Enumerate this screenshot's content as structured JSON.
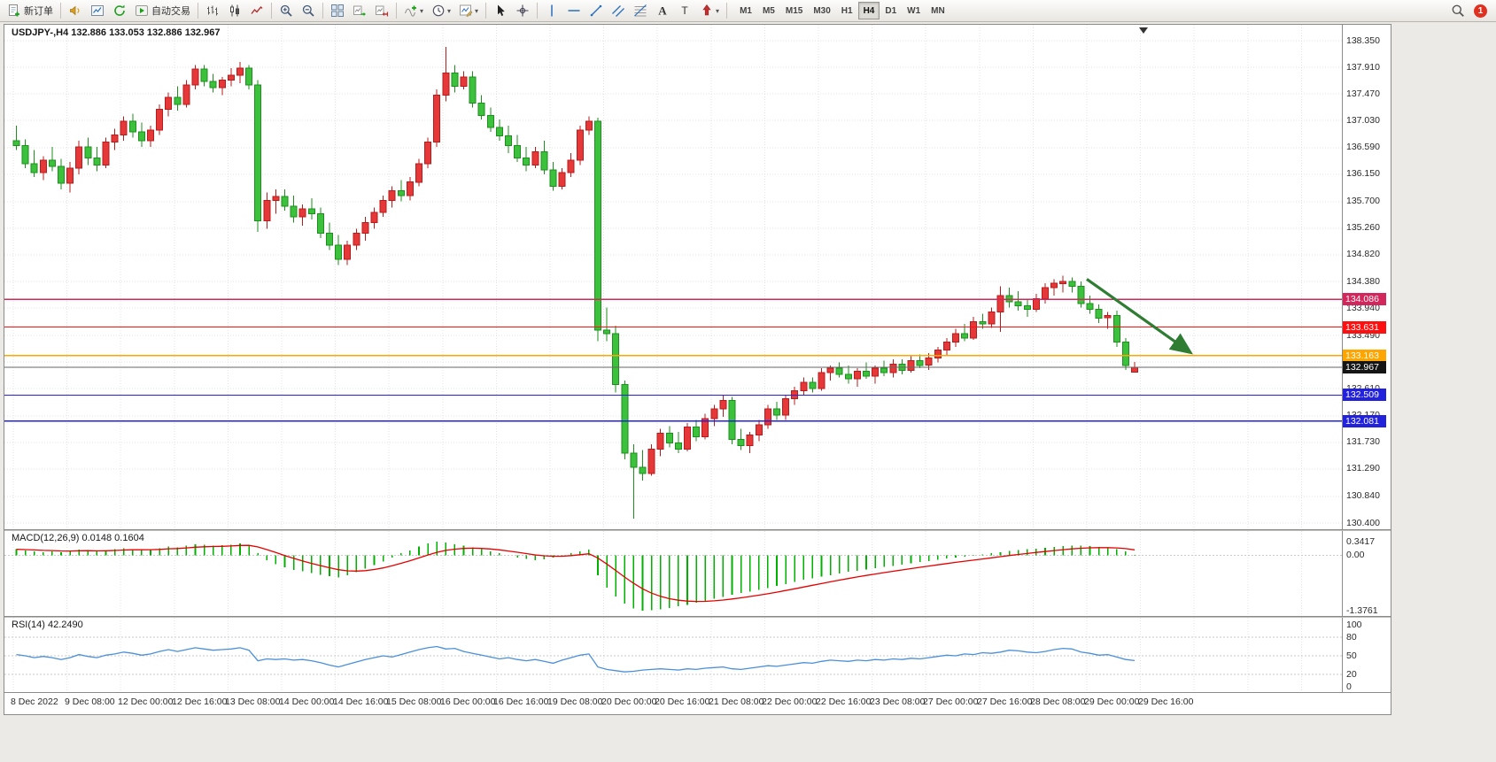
{
  "toolbar": {
    "items": [
      {
        "icon": "new-order-icon",
        "label": "新订单",
        "name": "new-order-button"
      },
      {
        "sep": true
      },
      {
        "icon": "horn-icon",
        "name": "alerts-button"
      },
      {
        "icon": "market-watch-icon",
        "name": "market-watch-button"
      },
      {
        "icon": "refresh-icon",
        "name": "refresh-button"
      },
      {
        "icon": "autotrading-icon",
        "label": "自动交易",
        "name": "autotrading-button"
      },
      {
        "sep": true
      },
      {
        "icon": "bar-chart-icon",
        "name": "bar-chart-button"
      },
      {
        "icon": "candle-chart-icon",
        "name": "candle-chart-button"
      },
      {
        "icon": "line-chart-icon",
        "name": "line-chart-button"
      },
      {
        "sep": true
      },
      {
        "icon": "zoom-in-icon",
        "name": "zoom-in-button"
      },
      {
        "icon": "zoom-out-icon",
        "name": "zoom-out-button"
      },
      {
        "sep": true
      },
      {
        "icon": "tile-windows-icon",
        "name": "tile-windows-button"
      },
      {
        "icon": "auto-scroll-icon",
        "name": "auto-scroll-button"
      },
      {
        "icon": "chart-shift-icon",
        "name": "chart-shift-button"
      },
      {
        "sep": true
      },
      {
        "icon": "indicators-icon",
        "name": "indicators-button",
        "dropdown": true
      },
      {
        "icon": "period-icon",
        "name": "periods-button",
        "dropdown": true
      },
      {
        "icon": "templates-icon",
        "name": "templates-button",
        "dropdown": true
      },
      {
        "sep": true
      },
      {
        "icon": "cursor-icon",
        "name": "cursor-button"
      },
      {
        "icon": "crosshair-icon",
        "name": "crosshair-button"
      },
      {
        "sep": true
      },
      {
        "icon": "vline-icon",
        "name": "vertical-line-button"
      },
      {
        "icon": "hline-icon",
        "name": "horizontal-line-button"
      },
      {
        "icon": "trendline-icon",
        "name": "trendline-button"
      },
      {
        "icon": "channel-icon",
        "name": "channel-button"
      },
      {
        "icon": "fibo-icon",
        "name": "fibonacci-button"
      },
      {
        "icon": "text-icon",
        "name": "text-button"
      },
      {
        "icon": "label-icon",
        "name": "text-label-button"
      },
      {
        "icon": "arrows-icon",
        "name": "arrows-button",
        "dropdown": true
      },
      {
        "sep": true
      }
    ],
    "timeframes": [
      "M1",
      "M5",
      "M15",
      "M30",
      "H1",
      "H4",
      "D1",
      "W1",
      "MN"
    ],
    "active_timeframe": "H4",
    "notification_count": "1"
  },
  "indicators": {
    "macd_label": "MACD(12,26,9) 0.0148 0.1604",
    "rsi_label": "RSI(14) 42.2490"
  },
  "chart_data": {
    "type": "candlestick",
    "symbol": "USDJPY-",
    "period": "H4",
    "title_line": "USDJPY-,H4 132.886 133.053 132.886 132.967",
    "ohlc_display": {
      "open": "132.886",
      "high": "133.053",
      "low": "132.886",
      "close": "132.967"
    },
    "colors": {
      "up": "#e63838",
      "up_border": "#b71c1c",
      "down": "#3bc13b",
      "down_border": "#1d8f1d",
      "grid": "#e3e3e3"
    },
    "price_axis_ticks": [
      "138.350",
      "137.910",
      "137.470",
      "137.030",
      "136.590",
      "136.150",
      "135.700",
      "135.260",
      "134.820",
      "134.380",
      "133.940",
      "133.490",
      "133.050",
      "132.610",
      "132.170",
      "131.730",
      "131.290",
      "130.840",
      "130.400"
    ],
    "time_axis": {
      "candle_step": 6,
      "labels": [
        "8 Dec 2022",
        "9 Dec 08:00",
        "12 Dec 00:00",
        "12 Dec 16:00",
        "13 Dec 08:00",
        "14 Dec 00:00",
        "14 Dec 16:00",
        "15 Dec 08:00",
        "16 Dec 00:00",
        "16 Dec 16:00",
        "19 Dec 08:00",
        "20 Dec 00:00",
        "20 Dec 16:00",
        "21 Dec 08:00",
        "22 Dec 00:00",
        "22 Dec 16:00",
        "23 Dec 08:00",
        "27 Dec 00:00",
        "27 Dec 16:00",
        "28 Dec 08:00",
        "29 Dec 00:00",
        "29 Dec 16:00"
      ]
    },
    "candles": [
      [
        136.7,
        136.95,
        136.55,
        136.62
      ],
      [
        136.62,
        136.72,
        136.25,
        136.32
      ],
      [
        136.32,
        136.55,
        136.1,
        136.18
      ],
      [
        136.18,
        136.45,
        136.05,
        136.38
      ],
      [
        136.38,
        136.6,
        136.2,
        136.28
      ],
      [
        136.28,
        136.4,
        135.9,
        136.0
      ],
      [
        136.0,
        136.35,
        135.85,
        136.25
      ],
      [
        136.25,
        136.7,
        136.15,
        136.6
      ],
      [
        136.6,
        136.75,
        136.3,
        136.42
      ],
      [
        136.42,
        136.6,
        136.2,
        136.3
      ],
      [
        136.3,
        136.75,
        136.25,
        136.68
      ],
      [
        136.68,
        136.9,
        136.55,
        136.8
      ],
      [
        136.8,
        137.1,
        136.7,
        137.02
      ],
      [
        137.02,
        137.15,
        136.75,
        136.85
      ],
      [
        136.85,
        137.0,
        136.6,
        136.7
      ],
      [
        136.7,
        136.95,
        136.6,
        136.88
      ],
      [
        136.88,
        137.3,
        136.8,
        137.22
      ],
      [
        137.22,
        137.5,
        137.1,
        137.42
      ],
      [
        137.42,
        137.6,
        137.2,
        137.3
      ],
      [
        137.3,
        137.7,
        137.25,
        137.62
      ],
      [
        137.62,
        137.95,
        137.55,
        137.88
      ],
      [
        137.88,
        137.95,
        137.6,
        137.68
      ],
      [
        137.68,
        137.8,
        137.5,
        137.58
      ],
      [
        137.58,
        137.75,
        137.45,
        137.7
      ],
      [
        137.7,
        137.9,
        137.6,
        137.78
      ],
      [
        137.78,
        138.0,
        137.65,
        137.9
      ],
      [
        137.9,
        137.95,
        137.55,
        137.62
      ],
      [
        137.62,
        137.7,
        135.2,
        135.38
      ],
      [
        135.38,
        135.85,
        135.25,
        135.72
      ],
      [
        135.72,
        135.9,
        135.5,
        135.78
      ],
      [
        135.78,
        135.9,
        135.55,
        135.62
      ],
      [
        135.62,
        135.8,
        135.35,
        135.45
      ],
      [
        135.45,
        135.65,
        135.3,
        135.58
      ],
      [
        135.58,
        135.75,
        135.4,
        135.5
      ],
      [
        135.5,
        135.6,
        135.1,
        135.18
      ],
      [
        135.18,
        135.35,
        134.9,
        134.98
      ],
      [
        134.98,
        135.15,
        134.65,
        134.75
      ],
      [
        134.75,
        135.05,
        134.65,
        134.98
      ],
      [
        134.98,
        135.25,
        134.9,
        135.18
      ],
      [
        135.18,
        135.45,
        135.05,
        135.35
      ],
      [
        135.35,
        135.6,
        135.25,
        135.52
      ],
      [
        135.52,
        135.8,
        135.45,
        135.72
      ],
      [
        135.72,
        135.95,
        135.6,
        135.88
      ],
      [
        135.88,
        136.05,
        135.7,
        135.8
      ],
      [
        135.8,
        136.1,
        135.72,
        136.02
      ],
      [
        136.02,
        136.4,
        135.95,
        136.32
      ],
      [
        136.32,
        136.75,
        136.25,
        136.68
      ],
      [
        136.68,
        137.55,
        136.6,
        137.45
      ],
      [
        137.45,
        138.25,
        137.35,
        137.82
      ],
      [
        137.82,
        137.95,
        137.5,
        137.6
      ],
      [
        137.6,
        137.85,
        137.55,
        137.75
      ],
      [
        137.75,
        137.85,
        137.25,
        137.32
      ],
      [
        137.32,
        137.45,
        137.05,
        137.12
      ],
      [
        137.12,
        137.25,
        136.85,
        136.92
      ],
      [
        136.92,
        137.05,
        136.7,
        136.78
      ],
      [
        136.78,
        136.95,
        136.5,
        136.62
      ],
      [
        136.62,
        136.8,
        136.35,
        136.42
      ],
      [
        136.42,
        136.6,
        136.2,
        136.3
      ],
      [
        136.3,
        136.6,
        136.25,
        136.52
      ],
      [
        136.52,
        136.7,
        136.15,
        136.22
      ],
      [
        136.22,
        136.35,
        135.88,
        135.95
      ],
      [
        135.95,
        136.25,
        135.9,
        136.18
      ],
      [
        136.18,
        136.5,
        136.1,
        136.38
      ],
      [
        136.38,
        136.95,
        136.3,
        136.88
      ],
      [
        136.88,
        137.1,
        136.8,
        137.02
      ],
      [
        137.02,
        137.08,
        133.4,
        133.58
      ],
      [
        133.58,
        133.95,
        133.4,
        133.52
      ],
      [
        133.52,
        133.65,
        132.55,
        132.68
      ],
      [
        132.68,
        132.75,
        131.45,
        131.55
      ],
      [
        131.55,
        131.7,
        130.47,
        131.32
      ],
      [
        131.32,
        131.6,
        131.1,
        131.22
      ],
      [
        131.22,
        131.7,
        131.18,
        131.62
      ],
      [
        131.62,
        131.95,
        131.5,
        131.88
      ],
      [
        131.88,
        132.0,
        131.65,
        131.72
      ],
      [
        131.72,
        131.9,
        131.55,
        131.62
      ],
      [
        131.62,
        132.05,
        131.58,
        131.98
      ],
      [
        131.98,
        132.1,
        131.75,
        131.82
      ],
      [
        131.82,
        132.2,
        131.78,
        132.12
      ],
      [
        132.12,
        132.35,
        132.0,
        132.28
      ],
      [
        132.28,
        132.5,
        132.15,
        132.42
      ],
      [
        132.42,
        132.48,
        131.7,
        131.78
      ],
      [
        131.78,
        131.95,
        131.6,
        131.68
      ],
      [
        131.68,
        131.9,
        131.55,
        131.85
      ],
      [
        131.85,
        132.1,
        131.75,
        132.02
      ],
      [
        132.02,
        132.35,
        131.95,
        132.28
      ],
      [
        132.28,
        132.4,
        132.1,
        132.18
      ],
      [
        132.18,
        132.5,
        132.1,
        132.45
      ],
      [
        132.45,
        132.65,
        132.35,
        132.58
      ],
      [
        132.58,
        132.8,
        132.5,
        132.72
      ],
      [
        132.72,
        132.8,
        132.55,
        132.62
      ],
      [
        132.62,
        132.95,
        132.58,
        132.88
      ],
      [
        132.88,
        133.0,
        132.75,
        132.95
      ],
      [
        132.95,
        133.05,
        132.8,
        132.85
      ],
      [
        132.85,
        133.0,
        132.7,
        132.78
      ],
      [
        132.78,
        132.95,
        132.65,
        132.9
      ],
      [
        132.9,
        133.05,
        132.78,
        132.82
      ],
      [
        132.82,
        133.0,
        132.7,
        132.95
      ],
      [
        132.95,
        133.08,
        132.82,
        132.88
      ],
      [
        132.88,
        133.1,
        132.8,
        133.02
      ],
      [
        133.02,
        133.1,
        132.85,
        132.92
      ],
      [
        132.92,
        133.15,
        132.88,
        133.08
      ],
      [
        133.08,
        133.18,
        132.95,
        133.0
      ],
      [
        133.0,
        133.2,
        132.92,
        133.12
      ],
      [
        133.12,
        133.3,
        133.05,
        133.25
      ],
      [
        133.25,
        133.45,
        133.15,
        133.38
      ],
      [
        133.38,
        133.6,
        133.3,
        133.52
      ],
      [
        133.52,
        133.68,
        133.4,
        133.45
      ],
      [
        133.45,
        133.8,
        133.42,
        133.72
      ],
      [
        133.72,
        133.85,
        133.6,
        133.68
      ],
      [
        133.68,
        133.95,
        133.62,
        133.88
      ],
      [
        133.88,
        134.3,
        133.55,
        134.15
      ],
      [
        134.15,
        134.28,
        133.95,
        134.05
      ],
      [
        134.05,
        134.22,
        133.9,
        133.98
      ],
      [
        133.98,
        134.1,
        133.8,
        133.92
      ],
      [
        133.92,
        134.18,
        133.88,
        134.1
      ],
      [
        134.1,
        134.35,
        134.02,
        134.28
      ],
      [
        134.28,
        134.42,
        134.15,
        134.35
      ],
      [
        134.35,
        134.48,
        134.2,
        134.38
      ],
      [
        134.38,
        134.45,
        134.2,
        134.3
      ],
      [
        134.3,
        134.38,
        133.95,
        134.02
      ],
      [
        134.02,
        134.15,
        133.85,
        133.92
      ],
      [
        133.92,
        134.0,
        133.7,
        133.78
      ],
      [
        133.78,
        133.88,
        133.6,
        133.82
      ],
      [
        133.82,
        133.9,
        133.3,
        133.38
      ],
      [
        133.38,
        133.45,
        132.92,
        133.0
      ],
      [
        132.886,
        133.053,
        132.886,
        132.967
      ]
    ],
    "hlines": [
      {
        "price": 134.086,
        "label": "134.086",
        "color": "#d2265c"
      },
      {
        "price": 133.631,
        "label": "133.631",
        "color": "#ff1010"
      },
      {
        "price": 133.163,
        "label": "133.163",
        "color": "#ffa500"
      },
      {
        "price": 132.509,
        "label": "132.509",
        "color": "#2222dd"
      },
      {
        "price": 132.081,
        "label": "132.081",
        "color": "#2222dd"
      }
    ],
    "bid_line": {
      "price": 132.967,
      "label": "132.967",
      "color": "#666666",
      "tag_color": "#151515"
    },
    "trend_arrow": {
      "from_index": 120,
      "from_price": 134.42,
      "to_index": 131.5,
      "to_price": 133.22,
      "color": "#2e7d32"
    },
    "macd": {
      "name": "MACD",
      "params": "12,26,9",
      "value": "0.0148",
      "signal_value": "0.1604",
      "color": "#00b200",
      "signal_color": "#e60000",
      "signal_alpha": 0.2,
      "scale_max": 0.3417,
      "scale_min": -1.3761,
      "scale": [
        {
          "v": 0.3417,
          "t": "0.3417"
        },
        {
          "v": 0,
          "t": "0.00"
        },
        {
          "v": -1.3761,
          "t": "-1.3761"
        }
      ],
      "values": [
        0.15,
        0.12,
        0.1,
        0.08,
        0.1,
        0.08,
        0.1,
        0.14,
        0.12,
        0.1,
        0.12,
        0.15,
        0.18,
        0.16,
        0.14,
        0.15,
        0.18,
        0.22,
        0.2,
        0.24,
        0.28,
        0.26,
        0.24,
        0.25,
        0.27,
        0.3,
        0.25,
        0.05,
        -0.12,
        -0.22,
        -0.3,
        -0.36,
        -0.4,
        -0.44,
        -0.48,
        -0.52,
        -0.55,
        -0.5,
        -0.42,
        -0.33,
        -0.24,
        -0.15,
        -0.05,
        0.05,
        0.12,
        0.22,
        0.3,
        0.34,
        0.32,
        0.28,
        0.24,
        0.2,
        0.15,
        0.1,
        0.05,
        0.0,
        -0.05,
        -0.09,
        -0.12,
        -0.1,
        -0.06,
        -0.02,
        0.05,
        0.1,
        0.14,
        -0.5,
        -0.8,
        -1.02,
        -1.2,
        -1.32,
        -1.3761,
        -1.37,
        -1.34,
        -1.31,
        -1.27,
        -1.23,
        -1.18,
        -1.13,
        -1.08,
        -1.03,
        -0.98,
        -0.94,
        -0.9,
        -0.86,
        -0.81,
        -0.76,
        -0.71,
        -0.66,
        -0.61,
        -0.57,
        -0.53,
        -0.49,
        -0.45,
        -0.41,
        -0.38,
        -0.35,
        -0.32,
        -0.29,
        -0.26,
        -0.23,
        -0.2,
        -0.17,
        -0.14,
        -0.11,
        -0.08,
        -0.05,
        -0.03,
        -0.01,
        0.02,
        0.05,
        0.08,
        0.11,
        0.13,
        0.15,
        0.17,
        0.19,
        0.21,
        0.23,
        0.24,
        0.24,
        0.23,
        0.21,
        0.19,
        0.16,
        0.1,
        0.0148
      ]
    },
    "rsi": {
      "name": "RSI",
      "params": "14",
      "value": "42.2490",
      "color": "#4a90d9",
      "levels": [
        80,
        50,
        20
      ],
      "scale": [
        {
          "v": 100,
          "t": "100"
        },
        {
          "v": 80,
          "t": "80"
        },
        {
          "v": 50,
          "t": "50"
        },
        {
          "v": 20,
          "t": "20"
        },
        {
          "v": 0,
          "t": "0"
        }
      ],
      "values": [
        52,
        50,
        47,
        49,
        47,
        44,
        47,
        52,
        49,
        47,
        51,
        53,
        56,
        54,
        51,
        53,
        57,
        60,
        57,
        60,
        63,
        61,
        59,
        60,
        61,
        63,
        59,
        42,
        45,
        44,
        45,
        43,
        44,
        42,
        39,
        35,
        32,
        36,
        40,
        44,
        47,
        50,
        48,
        52,
        56,
        60,
        63,
        65,
        61,
        62,
        57,
        54,
        51,
        48,
        45,
        47,
        44,
        42,
        44,
        41,
        38,
        43,
        47,
        51,
        53,
        32,
        28,
        26,
        24,
        25,
        27,
        28,
        29,
        28,
        27,
        29,
        28,
        30,
        31,
        32,
        29,
        28,
        30,
        32,
        34,
        33,
        35,
        37,
        39,
        38,
        41,
        43,
        42,
        41,
        43,
        42,
        44,
        43,
        45,
        44,
        46,
        45,
        47,
        49,
        51,
        50,
        53,
        52,
        55,
        54,
        56,
        59,
        58,
        56,
        55,
        57,
        60,
        62,
        61,
        56,
        54,
        51,
        52,
        48,
        44,
        42.249
      ]
    }
  }
}
